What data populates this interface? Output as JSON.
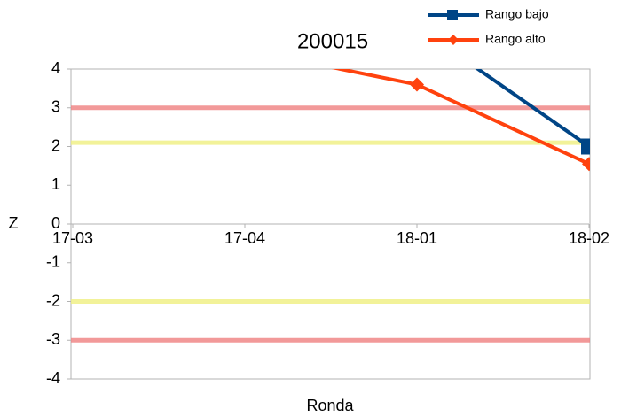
{
  "chart_data": {
    "type": "line",
    "title": "200015",
    "x_label": "Ronda",
    "y_label": "Z",
    "categories": [
      "17-03",
      "17-04",
      "18-01",
      "18-02"
    ],
    "series": [
      {
        "name": "Rango bajo",
        "color": "#004586",
        "marker": "square",
        "values": [
          null,
          null,
          5.1,
          2
        ]
      },
      {
        "name": "Rango alto",
        "color": "#ff420e",
        "marker": "diamond",
        "values": [
          null,
          4.5,
          3.6,
          1.55
        ]
      }
    ],
    "reference_lines": [
      {
        "value": 3,
        "color": "#f08080"
      },
      {
        "value": -3,
        "color": "#f08080"
      },
      {
        "value": 2.1,
        "color": "#f0f080"
      },
      {
        "value": -2,
        "color": "#f0f080"
      }
    ],
    "ylim": [
      -4,
      4
    ],
    "yticks": [
      -4,
      -3,
      -2,
      -1,
      0,
      1,
      2,
      3,
      4
    ],
    "grid": false,
    "legend": "top-right"
  }
}
